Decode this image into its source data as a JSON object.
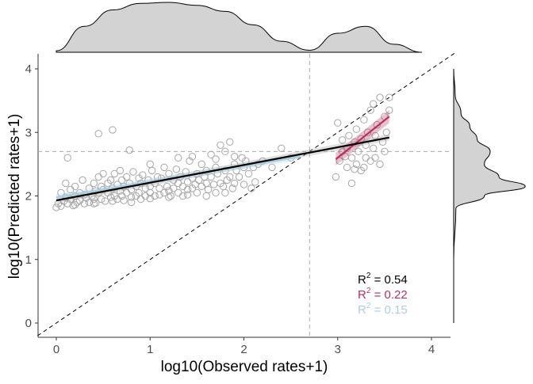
{
  "chart_data": {
    "type": "scatter",
    "xlabel": "log10(Observed rates+1)",
    "ylabel": "log10(Predicted rates+1)",
    "xlim": [
      -0.2,
      4.25
    ],
    "ylim": [
      -0.2,
      4.2
    ],
    "x_ticks": [
      "0",
      "1",
      "2",
      "3",
      "4"
    ],
    "y_ticks": [
      "0",
      "1",
      "2",
      "3",
      "4"
    ],
    "threshold_x": 2.7,
    "threshold_y": 2.7,
    "identity_line": true,
    "grid": false,
    "point_color": "#a6a6a6",
    "annotations": [
      {
        "prefix": "R",
        "sup": "2",
        "value": " = 0.54",
        "color": "#000000"
      },
      {
        "prefix": "R",
        "sup": "2",
        "value": " = 0.22",
        "color": "#b5305e"
      },
      {
        "prefix": "R",
        "sup": "2",
        "value": " = 0.15",
        "color": "#a9cfe0"
      }
    ],
    "fits": [
      {
        "color": "#000000",
        "x": [
          0.0,
          3.55
        ],
        "y": [
          1.93,
          2.92
        ],
        "band": 0.05
      },
      {
        "color": "#b5305e",
        "x": [
          2.98,
          3.55
        ],
        "y": [
          2.58,
          3.25
        ],
        "band": 0.1
      },
      {
        "color": "#a9cfe0",
        "x": [
          0.0,
          2.6
        ],
        "y": [
          1.98,
          2.62
        ],
        "band": 0.05
      }
    ],
    "marginal_x_density": {
      "x": [
        0.0,
        0.3,
        0.6,
        0.9,
        1.2,
        1.5,
        1.8,
        2.1,
        2.4,
        2.7,
        3.0,
        3.3,
        3.6,
        3.9
      ],
      "d": [
        0.03,
        0.52,
        0.85,
        0.98,
        1.0,
        0.94,
        0.82,
        0.55,
        0.22,
        0.04,
        0.38,
        0.52,
        0.16,
        0.0
      ]
    },
    "marginal_y_density": {
      "y": [
        0.0,
        1.0,
        1.8,
        2.0,
        2.15,
        2.3,
        2.5,
        2.7,
        2.9,
        3.1,
        3.3,
        3.6,
        4.0
      ],
      "d": [
        0.0,
        0.0,
        0.03,
        0.42,
        0.98,
        0.62,
        0.42,
        0.5,
        0.32,
        0.22,
        0.1,
        0.02,
        0.0
      ]
    },
    "points": [
      [
        0.0,
        1.82
      ],
      [
        0.02,
        1.88
      ],
      [
        0.05,
        1.84
      ],
      [
        0.05,
        2.05
      ],
      [
        0.08,
        1.92
      ],
      [
        0.1,
        2.2
      ],
      [
        0.1,
        1.98
      ],
      [
        0.12,
        2.6
      ],
      [
        0.12,
        1.88
      ],
      [
        0.15,
        1.95
      ],
      [
        0.15,
        2.1
      ],
      [
        0.18,
        1.85
      ],
      [
        0.2,
        2.0
      ],
      [
        0.2,
        2.15
      ],
      [
        0.22,
        1.9
      ],
      [
        0.25,
        2.05
      ],
      [
        0.25,
        1.93
      ],
      [
        0.28,
        2.25
      ],
      [
        0.3,
        1.88
      ],
      [
        0.3,
        2.02
      ],
      [
        0.32,
        1.97
      ],
      [
        0.35,
        2.12
      ],
      [
        0.35,
        1.9
      ],
      [
        0.38,
        2.0
      ],
      [
        0.4,
        2.2
      ],
      [
        0.4,
        1.95
      ],
      [
        0.42,
        2.08
      ],
      [
        0.42,
        1.89
      ],
      [
        0.45,
        2.98
      ],
      [
        0.45,
        2.3
      ],
      [
        0.45,
        2.05
      ],
      [
        0.48,
        2.15
      ],
      [
        0.48,
        1.95
      ],
      [
        0.5,
        2.35
      ],
      [
        0.5,
        2.1
      ],
      [
        0.52,
        1.92
      ],
      [
        0.55,
        2.2
      ],
      [
        0.55,
        2.05
      ],
      [
        0.58,
        2.25
      ],
      [
        0.58,
        1.98
      ],
      [
        0.6,
        3.04
      ],
      [
        0.6,
        2.12
      ],
      [
        0.62,
        2.35
      ],
      [
        0.62,
        2.0
      ],
      [
        0.65,
        2.18
      ],
      [
        0.65,
        1.95
      ],
      [
        0.68,
        2.4
      ],
      [
        0.68,
        2.08
      ],
      [
        0.7,
        2.25
      ],
      [
        0.7,
        2.0
      ],
      [
        0.72,
        2.15
      ],
      [
        0.72,
        1.93
      ],
      [
        0.75,
        2.3
      ],
      [
        0.75,
        2.05
      ],
      [
        0.78,
        2.72
      ],
      [
        0.78,
        2.2
      ],
      [
        0.8,
        2.1
      ],
      [
        0.8,
        1.98
      ],
      [
        0.82,
        2.38
      ],
      [
        0.85,
        2.15
      ],
      [
        0.85,
        2.0
      ],
      [
        0.88,
        2.28
      ],
      [
        0.88,
        2.05
      ],
      [
        0.9,
        2.2
      ],
      [
        0.9,
        1.95
      ],
      [
        0.92,
        2.33
      ],
      [
        0.95,
        2.12
      ],
      [
        0.95,
        2.0
      ],
      [
        0.98,
        2.25
      ],
      [
        1.0,
        2.15
      ],
      [
        1.0,
        2.05
      ],
      [
        1.02,
        2.4
      ],
      [
        1.05,
        2.2
      ],
      [
        1.05,
        2.0
      ],
      [
        1.08,
        2.3
      ],
      [
        1.1,
        2.12
      ],
      [
        1.1,
        2.02
      ],
      [
        1.12,
        2.28
      ],
      [
        1.15,
        2.05
      ],
      [
        1.15,
        2.45
      ],
      [
        1.18,
        2.15
      ],
      [
        1.2,
        2.35
      ],
      [
        1.2,
        2.08
      ],
      [
        1.22,
        2.0
      ],
      [
        1.25,
        2.25
      ],
      [
        1.25,
        2.12
      ],
      [
        1.28,
        2.42
      ],
      [
        1.3,
        2.2
      ],
      [
        1.3,
        2.05
      ],
      [
        1.32,
        2.3
      ],
      [
        1.35,
        2.15
      ],
      [
        1.35,
        2.0
      ],
      [
        1.38,
        2.38
      ],
      [
        1.4,
        2.22
      ],
      [
        1.4,
        2.1
      ],
      [
        1.42,
        2.55
      ],
      [
        1.45,
        2.28
      ],
      [
        1.45,
        2.12
      ],
      [
        1.48,
        2.18
      ],
      [
        1.5,
        2.35
      ],
      [
        1.5,
        2.05
      ],
      [
        1.52,
        2.25
      ],
      [
        1.55,
        2.5
      ],
      [
        1.55,
        2.15
      ],
      [
        1.58,
        2.3
      ],
      [
        1.6,
        2.4
      ],
      [
        1.6,
        2.2
      ],
      [
        1.62,
        2.1
      ],
      [
        1.65,
        2.65
      ],
      [
        1.65,
        2.3
      ],
      [
        1.68,
        2.18
      ],
      [
        1.7,
        2.45
      ],
      [
        1.7,
        2.05
      ],
      [
        1.72,
        2.35
      ],
      [
        1.75,
        2.8
      ],
      [
        1.75,
        2.2
      ],
      [
        1.78,
        2.15
      ],
      [
        1.8,
        2.7
      ],
      [
        1.8,
        2.4
      ],
      [
        1.82,
        2.25
      ],
      [
        1.85,
        2.85
      ],
      [
        1.85,
        2.3
      ],
      [
        1.88,
        2.12
      ],
      [
        1.9,
        2.5
      ],
      [
        1.9,
        2.2
      ],
      [
        1.92,
        2.4
      ],
      [
        1.95,
        2.3
      ],
      [
        1.98,
        2.6
      ],
      [
        2.0,
        2.45
      ],
      [
        2.0,
        2.18
      ],
      [
        2.02,
        2.55
      ],
      [
        2.05,
        2.35
      ],
      [
        2.08,
        2.12
      ],
      [
        2.1,
        2.45
      ],
      [
        2.12,
        2.22
      ],
      [
        2.15,
        2.5
      ],
      [
        2.2,
        2.55
      ],
      [
        2.3,
        2.45
      ],
      [
        2.4,
        2.75
      ],
      [
        2.5,
        2.6
      ],
      [
        0.2,
        1.86
      ],
      [
        0.4,
        1.88
      ],
      [
        0.6,
        1.92
      ],
      [
        0.8,
        1.9
      ],
      [
        1.0,
        1.96
      ],
      [
        1.2,
        1.98
      ],
      [
        1.4,
        2.02
      ],
      [
        1.6,
        2.0
      ],
      [
        1.8,
        2.05
      ],
      [
        1.0,
        2.5
      ],
      [
        1.3,
        2.6
      ],
      [
        1.45,
        2.62
      ],
      [
        1.7,
        2.58
      ],
      [
        1.9,
        2.62
      ],
      [
        2.98,
        2.3
      ],
      [
        3.0,
        3.15
      ],
      [
        3.02,
        2.55
      ],
      [
        3.05,
        2.7
      ],
      [
        3.05,
        2.88
      ],
      [
        3.08,
        2.62
      ],
      [
        3.1,
        2.75
      ],
      [
        3.1,
        2.45
      ],
      [
        3.12,
        2.95
      ],
      [
        3.15,
        2.2
      ],
      [
        3.15,
        2.6
      ],
      [
        3.18,
        2.85
      ],
      [
        3.2,
        3.05
      ],
      [
        3.2,
        2.5
      ],
      [
        3.22,
        2.7
      ],
      [
        3.25,
        2.9
      ],
      [
        3.25,
        2.4
      ],
      [
        3.28,
        3.2
      ],
      [
        3.3,
        2.6
      ],
      [
        3.3,
        2.8
      ],
      [
        3.32,
        3.0
      ],
      [
        3.35,
        3.35
      ],
      [
        3.35,
        2.55
      ],
      [
        3.38,
        2.75
      ],
      [
        3.4,
        2.95
      ],
      [
        3.42,
        3.12
      ],
      [
        3.45,
        2.5
      ],
      [
        3.45,
        3.55
      ],
      [
        3.48,
        2.85
      ],
      [
        3.5,
        3.25
      ],
      [
        3.52,
        3.0
      ],
      [
        3.55,
        3.35
      ],
      [
        3.55,
        3.55
      ],
      [
        3.28,
        2.45
      ],
      [
        3.18,
        2.42
      ],
      [
        3.4,
        2.6
      ],
      [
        3.5,
        2.7
      ],
      [
        3.38,
        3.45
      ]
    ]
  }
}
